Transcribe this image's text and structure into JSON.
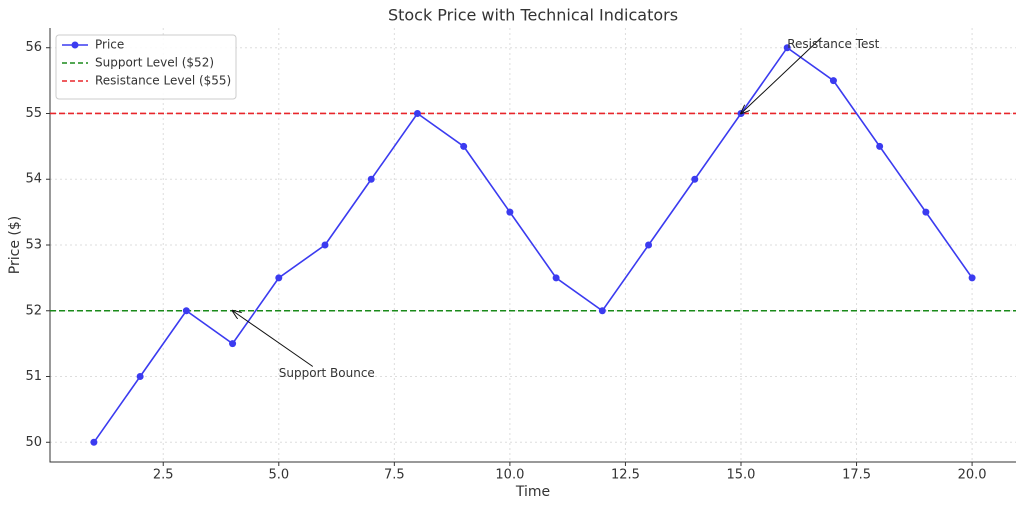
{
  "chart_data": {
    "type": "line",
    "title": "Stock Price with Technical Indicators",
    "x_label": "Time",
    "y_label": "Price ($)",
    "x": [
      1,
      2,
      3,
      4,
      5,
      6,
      7,
      8,
      9,
      10,
      11,
      12,
      13,
      14,
      15,
      16,
      17,
      18,
      19,
      20
    ],
    "series": [
      {
        "name": "Price",
        "color": "#3b3bf0",
        "values": [
          50,
          51,
          52,
          51.5,
          52.5,
          53,
          54,
          55,
          54.5,
          53.5,
          52.5,
          52,
          53,
          54,
          55,
          56,
          55.5,
          54.5,
          53.5,
          52.5
        ]
      }
    ],
    "hlines": [
      {
        "name": "Support Level ($52)",
        "color": "#1a8a1a",
        "value": 52
      },
      {
        "name": "Resistance Level ($55)",
        "color": "#e8262b",
        "value": 55
      }
    ],
    "annotations": [
      {
        "text": "Support Bounce",
        "xy": [
          4,
          52
        ],
        "xytext": [
          5,
          51
        ]
      },
      {
        "text": "Resistance Test",
        "xy": [
          15,
          55
        ],
        "xytext": [
          16,
          56
        ]
      }
    ],
    "xlim": [
      0.05,
      20.95
    ],
    "ylim": [
      49.7,
      56.3
    ],
    "xticks": [
      2.5,
      {
        "value": 5,
        "label": "5.0"
      },
      7.5,
      {
        "value": 10,
        "label": "10.0"
      },
      12.5,
      {
        "value": 15,
        "label": "15.0"
      },
      17.5,
      {
        "value": 20,
        "label": "20.0"
      }
    ],
    "yticks": [
      50,
      51,
      52,
      53,
      54,
      55,
      56
    ],
    "grid": true,
    "legend": "upper-left"
  }
}
